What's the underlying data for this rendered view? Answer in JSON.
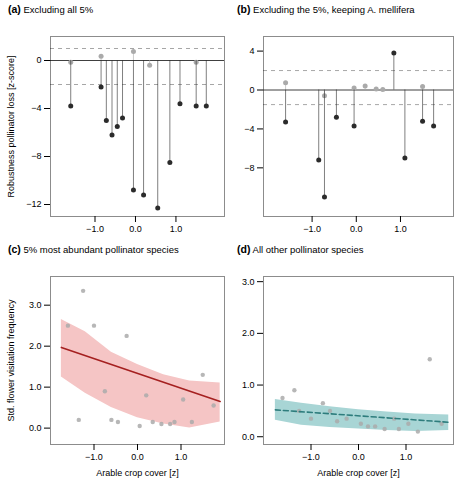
{
  "chart_data": [
    {
      "type": "lollipop",
      "annotations": [
        "(a)"
      ],
      "title": "Excluding all 5%",
      "ylabel": "Robustness pollinator loss [z-score]",
      "series": [
        {
          "color": "#aaaaaa",
          "x": [
            -1.6,
            -0.85,
            -0.05,
            0.35,
            1.5
          ],
          "values": [
            -0.15,
            0.35,
            0.75,
            -0.4,
            -0.15
          ]
        },
        {
          "color": "#2b2b2b",
          "x": [
            -1.6,
            -0.85,
            -0.72,
            -0.58,
            -0.45,
            -0.32,
            -0.05,
            0.2,
            0.55,
            0.85,
            1.1,
            1.5,
            1.75
          ],
          "values": [
            -3.8,
            -2.2,
            -5.0,
            -6.2,
            -5.5,
            -4.8,
            -10.8,
            -11.2,
            -12.3,
            -8.5,
            -3.6,
            -3.8,
            -3.8
          ]
        }
      ],
      "reference_lines": [
        {
          "value": 0,
          "line_style": "solid"
        },
        {
          "value": 1.0,
          "line_style": "dashed"
        },
        {
          "value": -2.0,
          "line_style": "dashed"
        }
      ],
      "xlim": [
        -2.1,
        2.2
      ],
      "xticks": [
        -1,
        0,
        1
      ],
      "ylim": [
        -13,
        2
      ],
      "yticks": [
        -12,
        -8,
        -4,
        0
      ],
      "grid": false
    },
    {
      "type": "lollipop",
      "annotations": [
        "(b)"
      ],
      "title": "Excluding the 5%, keeping A. mellifera",
      "series": [
        {
          "color": "#aaaaaa",
          "x": [
            -1.6,
            -0.72,
            -0.05,
            0.2,
            0.45,
            0.6,
            1.5
          ],
          "values": [
            0.75,
            -0.6,
            0.2,
            0.4,
            0.1,
            0.05,
            0.35
          ]
        },
        {
          "color": "#2b2b2b",
          "x": [
            -1.6,
            -0.85,
            -0.72,
            -0.45,
            -0.05,
            0.85,
            1.1,
            1.5,
            1.75
          ],
          "values": [
            -3.3,
            -7.2,
            -11.0,
            -2.8,
            -3.7,
            3.8,
            -7.0,
            -3.2,
            -3.7
          ]
        }
      ],
      "reference_lines": [
        {
          "value": 0,
          "line_style": "solid"
        },
        {
          "value": 2.0,
          "line_style": "dashed"
        },
        {
          "value": -1.5,
          "line_style": "dashed"
        }
      ],
      "xlim": [
        -2.1,
        2.2
      ],
      "xticks": [
        -1,
        0,
        1
      ],
      "ylim": [
        -13,
        5.5
      ],
      "yticks": [
        -8,
        -4,
        0,
        4
      ],
      "grid": false
    },
    {
      "type": "scatter",
      "annotations": [
        "(c)"
      ],
      "title": "5% most abundant pollinator species",
      "ylabel": "Std. flower visitation frequency",
      "xlabel": "Arable crop cover [z]",
      "series": [
        {
          "type": "area",
          "color": "#f5c5c5",
          "x": [
            -1.75,
            -1.2,
            -0.6,
            0.0,
            0.6,
            1.2,
            1.9
          ],
          "lower": [
            1.25,
            0.85,
            0.5,
            0.25,
            0.1,
            0.0,
            0.15
          ],
          "upper": [
            2.65,
            2.35,
            1.85,
            1.55,
            1.3,
            1.15,
            1.1
          ]
        },
        {
          "type": "scatter",
          "color": "#aaaaaa",
          "x": [
            -1.6,
            -1.35,
            -1.25,
            -1.0,
            -0.75,
            -0.6,
            -0.45,
            -0.25,
            0.05,
            0.2,
            0.35,
            0.55,
            0.75,
            0.85,
            1.05,
            1.25,
            1.5,
            1.75
          ],
          "values": [
            2.5,
            0.2,
            3.35,
            2.5,
            0.9,
            0.2,
            0.15,
            2.25,
            0.05,
            0.8,
            0.15,
            0.1,
            0.1,
            0.15,
            0.7,
            0.15,
            1.3,
            0.55
          ]
        },
        {
          "type": "line",
          "color": "#a52020",
          "line_style": "solid",
          "x": [
            -1.75,
            1.9
          ],
          "values": [
            1.97,
            0.65
          ]
        }
      ],
      "xlim": [
        -2.0,
        2.0
      ],
      "xticks": [
        -1,
        0,
        1
      ],
      "ylim": [
        -0.4,
        3.7
      ],
      "yticks": [
        0,
        1,
        2,
        3
      ],
      "grid": false
    },
    {
      "type": "scatter",
      "annotations": [
        "(d)"
      ],
      "title": "All other pollinator species",
      "xlabel": "Arable crop cover [z]",
      "series": [
        {
          "type": "area",
          "color": "#a8d5d5",
          "x": [
            -1.75,
            -1.2,
            -0.6,
            0.0,
            0.6,
            1.2,
            1.9
          ],
          "lower": [
            0.32,
            0.22,
            0.18,
            0.15,
            0.12,
            0.1,
            0.12
          ],
          "upper": [
            0.72,
            0.65,
            0.58,
            0.52,
            0.48,
            0.44,
            0.42
          ]
        },
        {
          "type": "scatter",
          "color": "#aaaaaa",
          "x": [
            -1.6,
            -1.35,
            -1.25,
            -1.0,
            -0.75,
            -0.6,
            -0.45,
            -0.25,
            0.05,
            0.2,
            0.35,
            0.55,
            0.75,
            0.85,
            1.05,
            1.25,
            1.5,
            1.75
          ],
          "values": [
            0.75,
            0.9,
            0.5,
            0.35,
            0.65,
            0.5,
            0.3,
            0.35,
            0.25,
            0.2,
            0.2,
            0.15,
            0.35,
            0.15,
            0.25,
            0.1,
            1.5,
            0.25
          ]
        },
        {
          "type": "line",
          "color": "#2e7d7d",
          "line_style": "dashed",
          "x": [
            -1.75,
            1.9
          ],
          "values": [
            0.52,
            0.28
          ]
        }
      ],
      "xlim": [
        -2.0,
        2.0
      ],
      "xticks": [
        -1,
        0,
        1
      ],
      "ylim": [
        -0.15,
        3.1
      ],
      "yticks": [
        0,
        1,
        2,
        3
      ],
      "grid": false
    }
  ]
}
